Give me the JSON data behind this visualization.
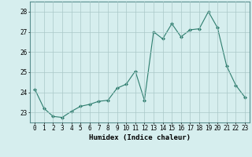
{
  "x": [
    0,
    1,
    2,
    3,
    4,
    5,
    6,
    7,
    8,
    9,
    10,
    11,
    12,
    13,
    14,
    15,
    16,
    17,
    18,
    19,
    20,
    21,
    22,
    23
  ],
  "y": [
    24.15,
    23.2,
    22.8,
    22.75,
    23.05,
    23.3,
    23.4,
    23.55,
    23.6,
    24.2,
    24.4,
    25.05,
    23.6,
    27.0,
    26.65,
    27.4,
    26.75,
    27.1,
    27.15,
    28.0,
    27.2,
    25.3,
    24.35,
    23.75
  ],
  "line_color": "#2d7d6e",
  "marker": "D",
  "marker_size": 2.0,
  "bg_color": "#d6eeee",
  "grid_color": "#aac8c8",
  "xlabel": "Humidex (Indice chaleur)",
  "ylim": [
    22.5,
    28.5
  ],
  "xlim": [
    -0.5,
    23.5
  ],
  "yticks": [
    23,
    24,
    25,
    26,
    27,
    28
  ],
  "xticks": [
    0,
    1,
    2,
    3,
    4,
    5,
    6,
    7,
    8,
    9,
    10,
    11,
    12,
    13,
    14,
    15,
    16,
    17,
    18,
    19,
    20,
    21,
    22,
    23
  ],
  "axis_fontsize": 6.5,
  "tick_fontsize": 5.5
}
